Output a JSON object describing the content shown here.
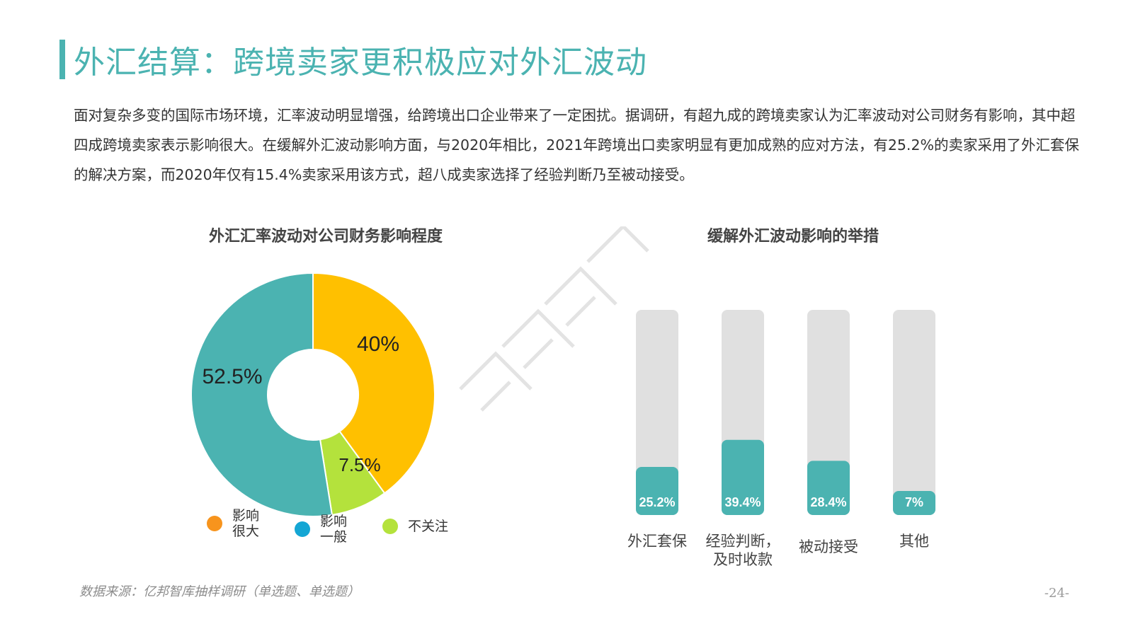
{
  "page": {
    "title": "外汇结算：跨境卖家更积极应对外汇波动",
    "intro": "面对复杂多变的国际市场环境，汇率波动明显增强，给跨境出口企业带来了一定困扰。据调研，有超九成的跨境卖家认为汇率波动对公司财务有影响，其中超四成跨境卖家表示影响很大。在缓解外汇波动影响方面，与2020年相比，2021年跨境出口卖家明显有更加成熟的应对方法，有25.2%的卖家采用了外汇套保的解决方案，而2020年仅有15.4%卖家采用该方式，超八成卖家选择了经验判断乃至被动接受。",
    "source": "数据来源：亿邦智库抽样调研（单选题、单选题）",
    "page_number": "-24-"
  },
  "colors": {
    "accent": "#4bb3b1",
    "donut_large": "#4bb3b1",
    "donut_great": "#ffc000",
    "donut_none": "#b4e23c",
    "bar_track": "#e0e0e0",
    "bar_fill": "#4bb3b1",
    "legend_great": "#f7941d",
    "legend_large": "#14a6d4",
    "legend_none": "#b4e23c"
  },
  "chart_data": [
    {
      "type": "pie",
      "title": "外汇汇率波动对公司财务影响程度",
      "slices": [
        {
          "name": "影响很大",
          "value": 40,
          "label": "40%",
          "color": "#ffc000",
          "legend_color": "#f7941d"
        },
        {
          "name": "不关注",
          "value": 7.5,
          "label": "7.5%",
          "color": "#b4e23c",
          "legend_color": "#b4e23c"
        },
        {
          "name": "影响一般",
          "value": 52.5,
          "label": "52.5%",
          "color": "#4bb3b1",
          "legend_color": "#14a6d4"
        }
      ],
      "legend": [
        {
          "name_line1": "影响",
          "name_line2": "很大",
          "color": "#f7941d"
        },
        {
          "name_line1": "影响",
          "name_line2": "一般",
          "color": "#14a6d4"
        },
        {
          "name_line1": "不关注",
          "name_line2": "",
          "color": "#b4e23c"
        }
      ],
      "legend_position": "bottom"
    },
    {
      "type": "bar",
      "title": "缓解外汇波动影响的举措",
      "categories": [
        "外汇套保",
        "经验判断，及时收款",
        "被动接受",
        "其他"
      ],
      "category_lines": [
        [
          "外汇套保",
          ""
        ],
        [
          "经验判断，",
          "及时收款"
        ],
        [
          "被动接受",
          ""
        ],
        [
          "其他",
          ""
        ]
      ],
      "values": [
        25.2,
        39.4,
        28.4,
        7
      ],
      "labels": [
        "25.2%",
        "39.4%",
        "28.4%",
        "7%"
      ],
      "ylim": [
        0,
        100
      ],
      "grid": false
    }
  ]
}
